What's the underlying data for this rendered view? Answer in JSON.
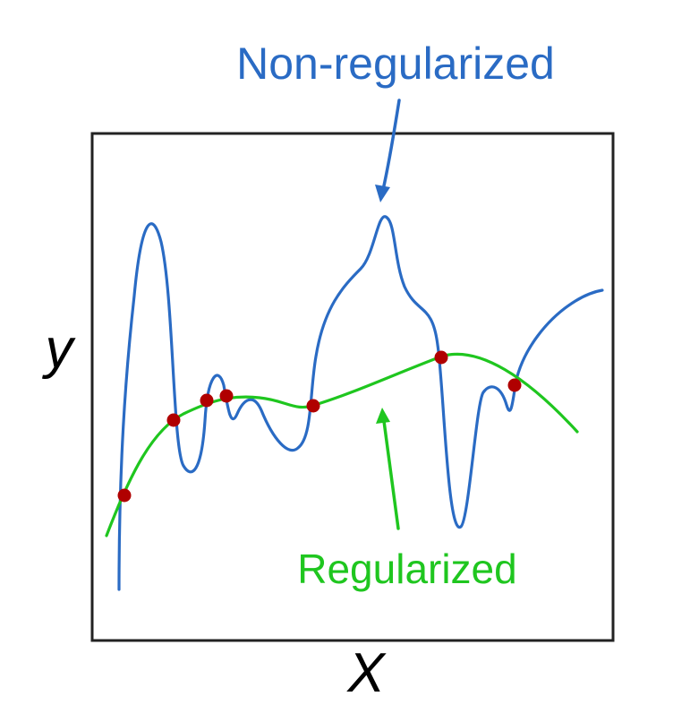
{
  "labels": {
    "non_regularized": "Non-regularized",
    "regularized": "Regularized",
    "x_axis": "X",
    "y_axis": "y"
  },
  "colors": {
    "non_regularized": "#2a6bc4",
    "regularized": "#1fc61f",
    "data_point": "#b00000",
    "frame": "#222222"
  }
}
